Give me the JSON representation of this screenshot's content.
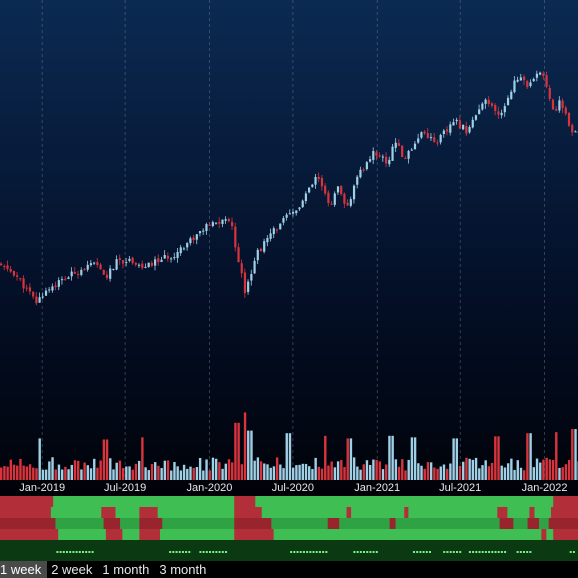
{
  "chart_data": {
    "type": "candlestick",
    "title": "",
    "xlabel": "",
    "ylabel": "",
    "x_ticks": [
      {
        "label": "Jan-2019",
        "date": "2019-01-01"
      },
      {
        "label": "Jul-2019",
        "date": "2019-07-01"
      },
      {
        "label": "Jan-2020",
        "date": "2020-01-01"
      },
      {
        "label": "Jul-2020",
        "date": "2020-07-01"
      },
      {
        "label": "Jan-2021",
        "date": "2021-01-01"
      },
      {
        "label": "Jul-2021",
        "date": "2021-07-01"
      },
      {
        "label": "Jan-2022",
        "date": "2022-01-01"
      }
    ],
    "x_range": [
      "2018-10-01",
      "2022-03-15"
    ],
    "price_range": [
      0,
      100
    ],
    "price_path": [
      [
        "2018-10-01",
        37
      ],
      [
        "2018-11-05",
        35
      ],
      [
        "2018-12-24",
        28
      ],
      [
        "2019-01-15",
        31
      ],
      [
        "2019-02-15",
        33
      ],
      [
        "2019-04-01",
        36
      ],
      [
        "2019-05-01",
        37
      ],
      [
        "2019-05-25",
        34
      ],
      [
        "2019-06-20",
        38
      ],
      [
        "2019-07-25",
        38
      ],
      [
        "2019-08-15",
        36
      ],
      [
        "2019-09-15",
        38
      ],
      [
        "2019-10-15",
        39
      ],
      [
        "2019-11-15",
        42
      ],
      [
        "2019-12-31",
        46
      ],
      [
        "2020-02-19",
        48
      ],
      [
        "2020-03-23",
        31
      ],
      [
        "2020-04-20",
        40
      ],
      [
        "2020-06-08",
        47
      ],
      [
        "2020-07-15",
        50
      ],
      [
        "2020-08-28",
        58
      ],
      [
        "2020-09-23",
        51
      ],
      [
        "2020-10-12",
        55
      ],
      [
        "2020-10-30",
        50
      ],
      [
        "2020-11-25",
        58
      ],
      [
        "2020-12-31",
        64
      ],
      [
        "2021-01-29",
        61
      ],
      [
        "2021-02-12",
        67
      ],
      [
        "2021-03-04",
        62
      ],
      [
        "2021-04-15",
        69
      ],
      [
        "2021-05-12",
        66
      ],
      [
        "2021-06-25",
        71
      ],
      [
        "2021-07-19",
        69
      ],
      [
        "2021-08-31",
        76
      ],
      [
        "2021-09-30",
        72
      ],
      [
        "2021-10-29",
        80
      ],
      [
        "2021-11-19",
        82
      ],
      [
        "2021-12-01",
        79
      ],
      [
        "2021-12-28",
        83
      ],
      [
        "2022-01-04",
        82
      ],
      [
        "2022-01-28",
        73
      ],
      [
        "2022-02-10",
        76
      ],
      [
        "2022-03-08",
        68
      ]
    ],
    "volume_range": [
      0,
      100
    ],
    "volume_spikes": [
      [
        "2018-12-24",
        80
      ],
      [
        "2019-05-17",
        78
      ],
      [
        "2019-08-05",
        82
      ],
      [
        "2020-02-28",
        110
      ],
      [
        "2020-03-16",
        130
      ],
      [
        "2020-03-27",
        95
      ],
      [
        "2020-06-19",
        90
      ],
      [
        "2020-09-08",
        85
      ],
      [
        "2020-10-30",
        80
      ],
      [
        "2021-01-29",
        85
      ],
      [
        "2021-03-19",
        82
      ],
      [
        "2021-06-18",
        80
      ],
      [
        "2021-09-17",
        84
      ],
      [
        "2021-11-26",
        90
      ],
      [
        "2022-01-24",
        92
      ],
      [
        "2022-03-04",
        98
      ]
    ],
    "bands": [
      {
        "red": [
          [
            "2018-10-01",
            "2019-01-25"
          ],
          [
            "2020-02-24",
            "2020-04-10"
          ],
          [
            "2022-01-20",
            "2022-03-15"
          ]
        ]
      },
      {
        "red": [
          [
            "2018-10-01",
            "2019-01-20"
          ],
          [
            "2019-05-10",
            "2019-06-10"
          ],
          [
            "2019-08-01",
            "2019-09-10"
          ],
          [
            "2020-02-24",
            "2020-04-24"
          ],
          [
            "2020-10-26",
            "2020-11-05"
          ],
          [
            "2021-03-01",
            "2021-03-10"
          ],
          [
            "2021-09-20",
            "2021-10-12"
          ],
          [
            "2021-11-29",
            "2021-12-10"
          ],
          [
            "2022-01-15",
            "2022-03-15"
          ]
        ]
      },
      {
        "red": [
          [
            "2018-10-01",
            "2019-01-30"
          ],
          [
            "2019-05-15",
            "2019-06-20"
          ],
          [
            "2019-08-01",
            "2019-09-20"
          ],
          [
            "2020-02-24",
            "2020-05-15"
          ],
          [
            "2020-09-15",
            "2020-10-10"
          ],
          [
            "2021-01-28",
            "2021-02-10"
          ],
          [
            "2021-09-25",
            "2021-10-25"
          ],
          [
            "2021-11-25",
            "2021-12-20"
          ],
          [
            "2022-01-10",
            "2022-03-15"
          ]
        ]
      },
      {
        "red": [
          [
            "2018-10-01",
            "2019-02-05"
          ],
          [
            "2019-05-20",
            "2019-06-25"
          ],
          [
            "2019-08-01",
            "2019-09-15"
          ],
          [
            "2020-02-24",
            "2020-05-20"
          ],
          [
            "2021-12-25",
            "2022-01-05"
          ],
          [
            "2022-01-20",
            "2022-03-15"
          ]
        ]
      }
    ],
    "dot_row_on": [
      [
        "2019-02-01",
        "2019-04-20"
      ],
      [
        "2019-10-05",
        "2019-11-20"
      ],
      [
        "2019-12-10",
        "2020-02-05"
      ],
      [
        "2020-06-25",
        "2020-09-10"
      ],
      [
        "2020-11-10",
        "2020-12-30"
      ],
      [
        "2021-03-20",
        "2021-04-28"
      ],
      [
        "2021-05-25",
        "2021-07-05"
      ],
      [
        "2021-07-20",
        "2021-10-10"
      ],
      [
        "2021-11-01",
        "2021-12-01"
      ],
      [
        "2022-02-25",
        "2022-03-05"
      ]
    ],
    "colors": {
      "up": "#9fd0e6",
      "down": "#d9343e",
      "band_green": "#3fbf53",
      "band_green_shade": "#2fa344",
      "band_red": "#b22f39",
      "band_red_shade": "#98252e",
      "dot": "#7cf28a"
    }
  },
  "tabs": [
    {
      "label": "1 week",
      "active": true
    },
    {
      "label": "2 week",
      "active": false
    },
    {
      "label": "1 month",
      "active": false
    },
    {
      "label": "3 month",
      "active": false
    }
  ]
}
